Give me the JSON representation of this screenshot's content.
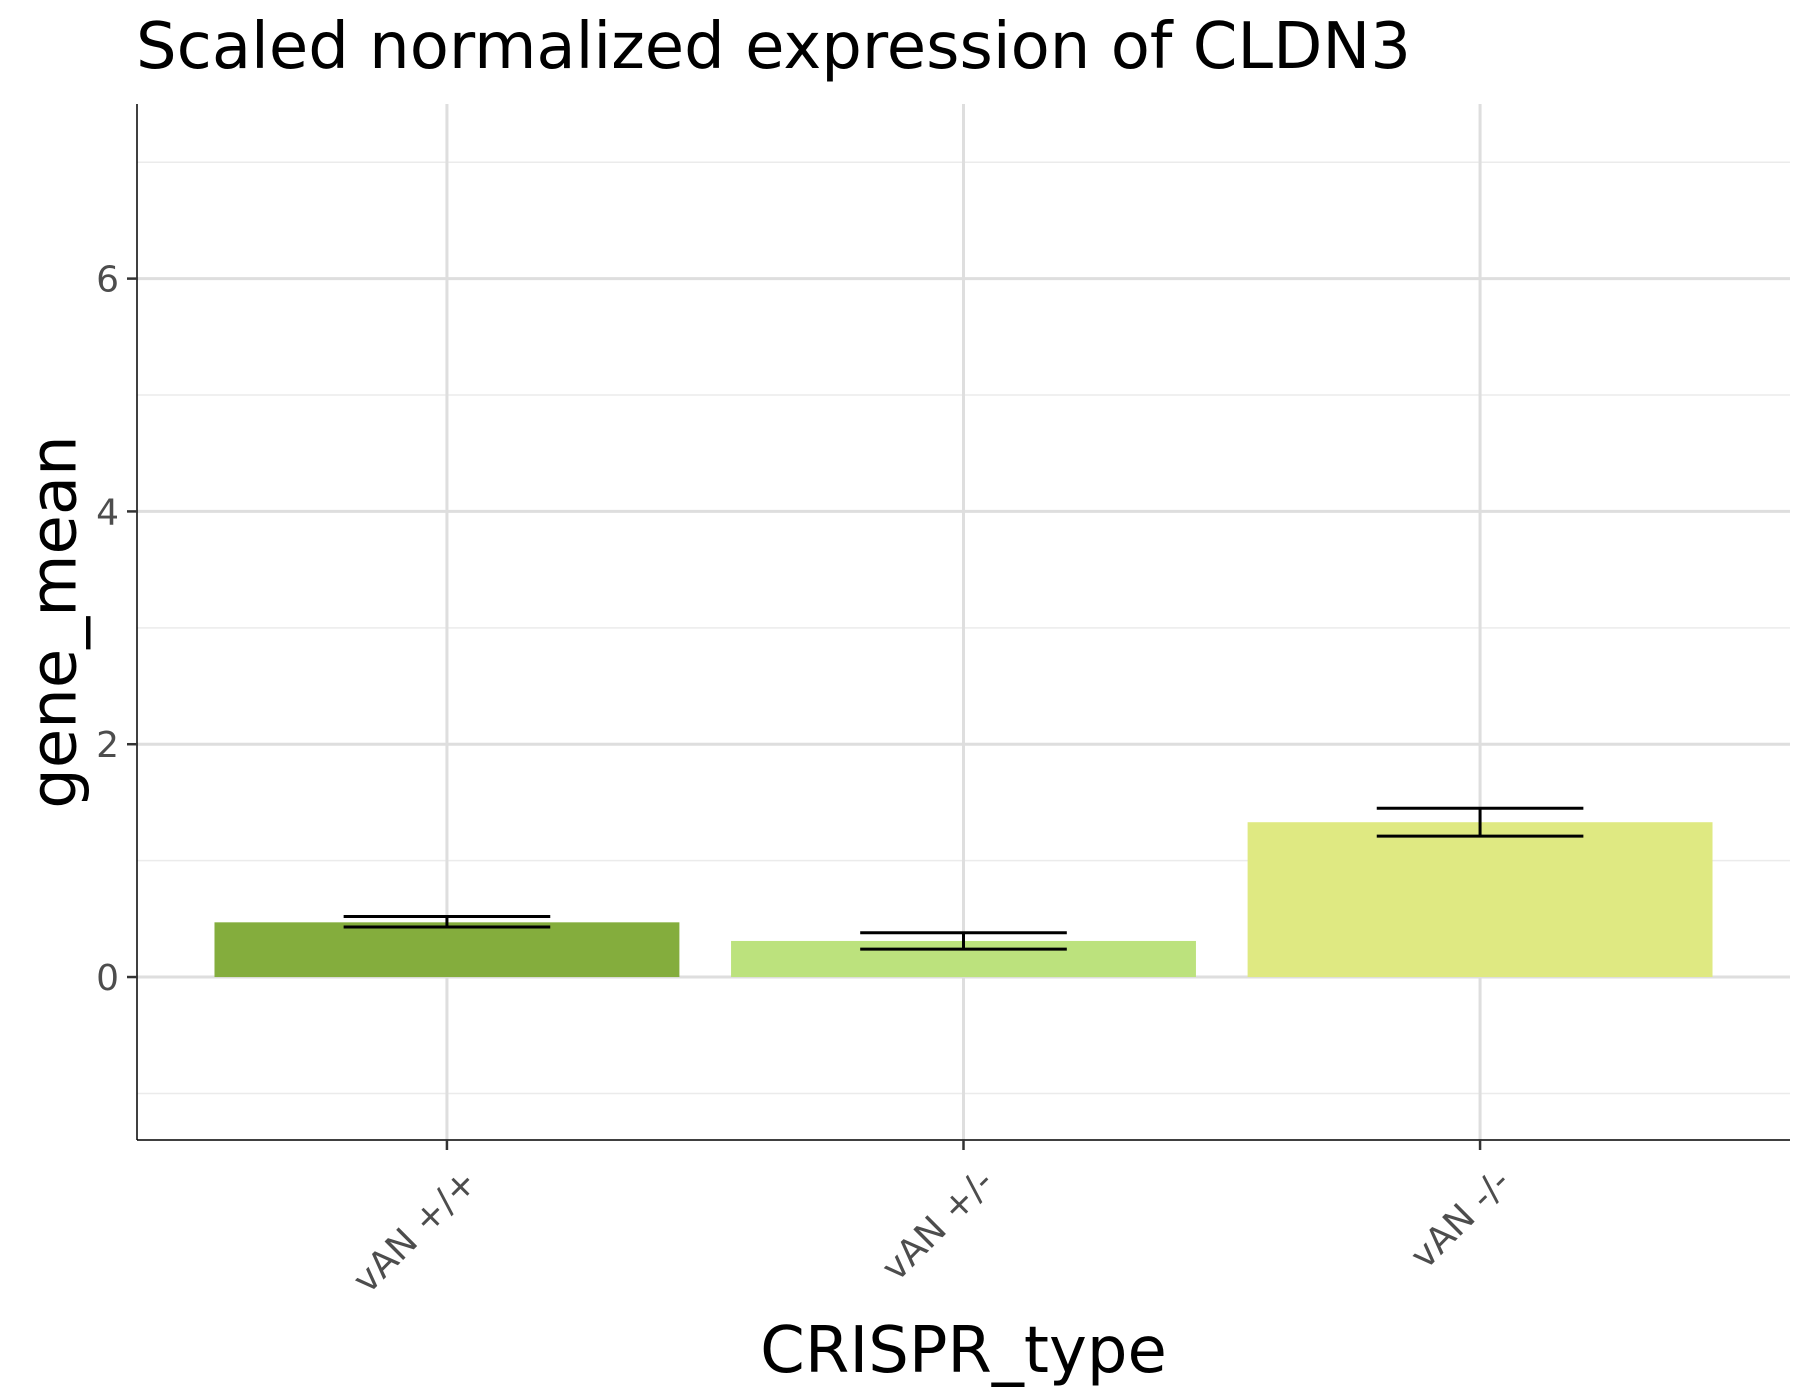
{
  "chart_data": {
    "type": "bar",
    "title": "Scaled normalized expression of CLDN3",
    "xlabel": "CRISPR_type",
    "ylabel": "gene_mean",
    "categories": [
      "vAN +/+",
      "vAN +/-",
      "vAN -/-"
    ],
    "values": [
      0.47,
      0.31,
      1.33
    ],
    "error_low": [
      0.43,
      0.24,
      1.21
    ],
    "error_high": [
      0.52,
      0.38,
      1.45
    ],
    "bar_colors": [
      "#84ad3d",
      "#bce27d",
      "#dfe982"
    ],
    "ylim": [
      -1.4,
      7.5
    ],
    "yticks": [
      0,
      2,
      4,
      6
    ],
    "grid": true,
    "legend": "none"
  }
}
